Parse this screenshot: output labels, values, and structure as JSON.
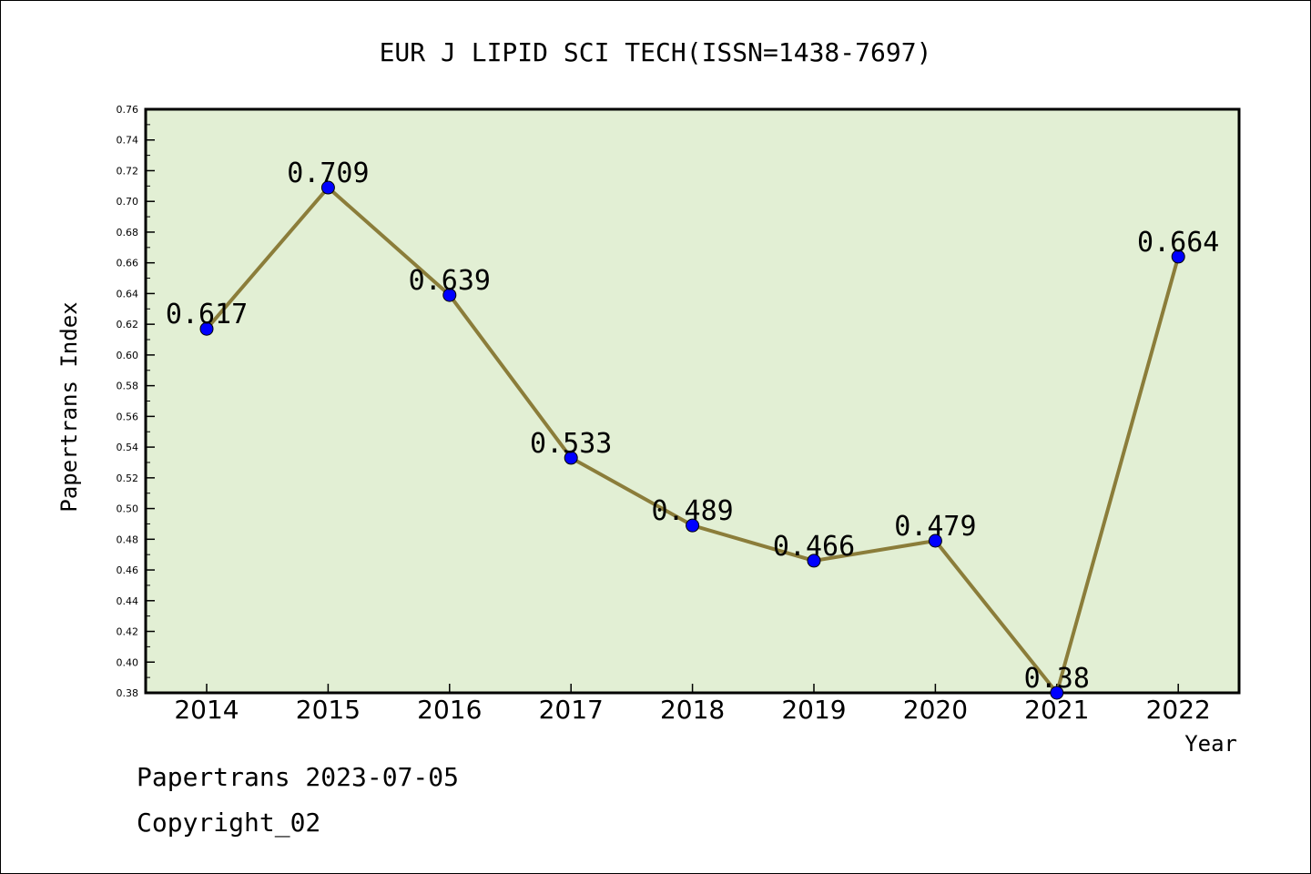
{
  "chart_data": {
    "type": "line",
    "title": "EUR J LIPID SCI TECH(ISSN=1438-7697)",
    "xlabel": "Year",
    "ylabel": "Papertrans Index",
    "categories": [
      "2014",
      "2015",
      "2016",
      "2017",
      "2018",
      "2019",
      "2020",
      "2021",
      "2022"
    ],
    "values": [
      0.617,
      0.709,
      0.639,
      0.533,
      0.489,
      0.466,
      0.479,
      0.38,
      0.664
    ],
    "data_labels": [
      "0.617",
      "0.709",
      "0.639",
      "0.533",
      "0.489",
      "0.466",
      "0.479",
      "0.38",
      "0.664"
    ],
    "ylim": [
      0.38,
      0.76
    ],
    "yticks": [
      "0.38",
      "0.40",
      "0.42",
      "0.44",
      "0.46",
      "0.48",
      "0.50",
      "0.52",
      "0.54",
      "0.56",
      "0.58",
      "0.60",
      "0.62",
      "0.64",
      "0.66",
      "0.68",
      "0.70",
      "0.72",
      "0.74",
      "0.76"
    ],
    "grid": false,
    "colors": {
      "plot_background": "#e2efd4",
      "line": "#8b7d3a",
      "marker": "#0000ff"
    }
  },
  "footer": {
    "line1": "Papertrans 2023-07-05",
    "line2": "Copyright_02"
  }
}
